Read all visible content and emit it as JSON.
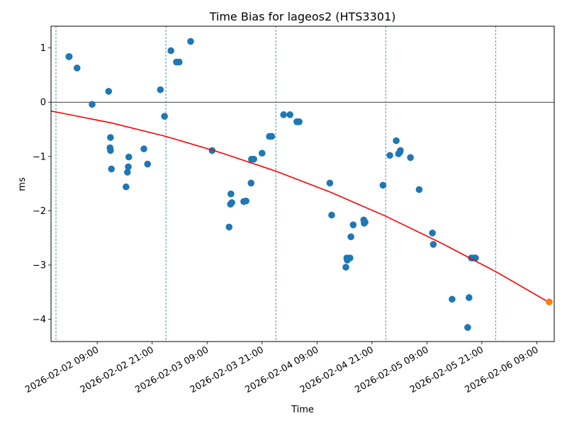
{
  "chart_data": {
    "type": "scatter",
    "title": "Time Bias for lageos2 (HTS3301)",
    "xlabel": "Time",
    "ylabel": "ms",
    "x_origin": "2026-02-02 00:00",
    "x_unit": "hours",
    "xlim": [
      -1.08,
      108.8
    ],
    "ylim": [
      -4.41,
      1.4
    ],
    "grid": false,
    "yticks": [
      {
        "value": 1,
        "label": "1"
      },
      {
        "value": 0,
        "label": "0"
      },
      {
        "value": -1,
        "label": "−1"
      },
      {
        "value": -2,
        "label": "−2"
      },
      {
        "value": -3,
        "label": "−3"
      },
      {
        "value": -4,
        "label": "−4"
      }
    ],
    "xticks": [
      {
        "value": 9,
        "label": "2026-02-02 09:00"
      },
      {
        "value": 21,
        "label": "2026-02-02 21:00"
      },
      {
        "value": 33,
        "label": "2026-02-03 09:00"
      },
      {
        "value": 45,
        "label": "2026-02-03 21:00"
      },
      {
        "value": 57,
        "label": "2026-02-04 09:00"
      },
      {
        "value": 69,
        "label": "2026-02-04 21:00"
      },
      {
        "value": 81,
        "label": "2026-02-05 09:00"
      },
      {
        "value": 93,
        "label": "2026-02-05 21:00"
      },
      {
        "value": 105,
        "label": "2026-02-06 09:00"
      }
    ],
    "day_boundaries": [
      0,
      24,
      48,
      72,
      96
    ],
    "zero_line": 0,
    "series": [
      {
        "name": "measurements",
        "type": "scatter",
        "color": "#1f77b4",
        "points": [
          [
            2.8,
            0.84
          ],
          [
            2.9,
            0.84
          ],
          [
            4.6,
            0.63
          ],
          [
            7.9,
            -0.04
          ],
          [
            11.5,
            0.2
          ],
          [
            11.9,
            -0.65
          ],
          [
            11.8,
            -0.84
          ],
          [
            11.9,
            -0.89
          ],
          [
            12.1,
            -1.23
          ],
          [
            15.3,
            -1.56
          ],
          [
            15.6,
            -1.29
          ],
          [
            15.8,
            -1.19
          ],
          [
            15.9,
            -1.01
          ],
          [
            19.2,
            -0.86
          ],
          [
            20.0,
            -1.14
          ],
          [
            22.8,
            0.23
          ],
          [
            23.7,
            -0.26
          ],
          [
            25.1,
            0.95
          ],
          [
            26.3,
            0.74
          ],
          [
            26.9,
            0.74
          ],
          [
            29.4,
            1.12
          ],
          [
            34.1,
            -0.89
          ],
          [
            37.8,
            -2.3
          ],
          [
            38.2,
            -1.69
          ],
          [
            38.1,
            -1.88
          ],
          [
            38.4,
            -1.85
          ],
          [
            41.0,
            -1.83
          ],
          [
            41.5,
            -1.82
          ],
          [
            42.6,
            -1.49
          ],
          [
            42.7,
            -1.05
          ],
          [
            43.2,
            -1.05
          ],
          [
            45.0,
            -0.94
          ],
          [
            46.6,
            -0.63
          ],
          [
            47.1,
            -0.63
          ],
          [
            49.7,
            -0.23
          ],
          [
            51.1,
            -0.23
          ],
          [
            52.6,
            -0.36
          ],
          [
            53.1,
            -0.36
          ],
          [
            59.8,
            -1.49
          ],
          [
            60.2,
            -2.08
          ],
          [
            63.3,
            -3.04
          ],
          [
            63.5,
            -2.87
          ],
          [
            63.6,
            -2.91
          ],
          [
            64.2,
            -2.87
          ],
          [
            64.4,
            -2.48
          ],
          [
            64.9,
            -2.26
          ],
          [
            67.2,
            -2.17
          ],
          [
            67.3,
            -2.23
          ],
          [
            67.5,
            -2.21
          ],
          [
            71.4,
            -1.53
          ],
          [
            72.9,
            -0.98
          ],
          [
            74.3,
            -0.71
          ],
          [
            74.8,
            -0.95
          ],
          [
            75.1,
            -0.92
          ],
          [
            75.2,
            -0.89
          ],
          [
            77.4,
            -1.02
          ],
          [
            79.3,
            -1.61
          ],
          [
            82.2,
            -2.41
          ],
          [
            82.4,
            -2.62
          ],
          [
            86.5,
            -3.63
          ],
          [
            89.9,
            -4.15
          ],
          [
            90.2,
            -3.6
          ],
          [
            90.7,
            -2.87
          ],
          [
            91.1,
            -2.87
          ],
          [
            91.6,
            -2.87
          ]
        ]
      },
      {
        "name": "fit",
        "type": "line",
        "color": "#ff0000",
        "points": [
          [
            -1.08,
            -0.164
          ],
          [
            0,
            -0.18
          ],
          [
            12,
            -0.38
          ],
          [
            24,
            -0.63
          ],
          [
            36,
            -0.93
          ],
          [
            48,
            -1.27
          ],
          [
            60,
            -1.66
          ],
          [
            72,
            -2.1
          ],
          [
            84,
            -2.59
          ],
          [
            96,
            -3.12
          ],
          [
            107.7,
            -3.69
          ]
        ]
      },
      {
        "name": "prediction",
        "type": "scatter",
        "color": "#ff7f0e",
        "points": [
          [
            107.7,
            -3.68
          ]
        ]
      }
    ]
  }
}
